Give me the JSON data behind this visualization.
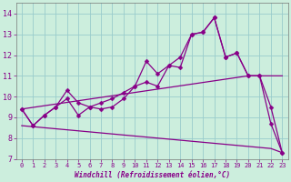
{
  "xlabel": "Windchill (Refroidissement éolien,°C)",
  "bg_color": "#cceedd",
  "line_color": "#880088",
  "grid_color": "#99cccc",
  "xlim": [
    -0.5,
    23.5
  ],
  "ylim": [
    7.0,
    14.5
  ],
  "xticks": [
    0,
    1,
    2,
    3,
    4,
    5,
    6,
    7,
    8,
    9,
    10,
    11,
    12,
    13,
    14,
    15,
    16,
    17,
    18,
    19,
    20,
    21,
    22,
    23
  ],
  "yticks": [
    7,
    8,
    9,
    10,
    11,
    12,
    13,
    14
  ],
  "x": [
    0,
    1,
    2,
    3,
    4,
    5,
    6,
    7,
    8,
    9,
    10,
    11,
    12,
    13,
    14,
    15,
    16,
    17,
    18,
    19,
    20,
    21,
    22,
    23
  ],
  "main_y": [
    9.4,
    8.6,
    9.1,
    9.5,
    9.9,
    9.1,
    9.5,
    9.4,
    9.5,
    9.9,
    10.5,
    10.7,
    10.5,
    11.5,
    11.4,
    13.0,
    13.1,
    13.8,
    11.9,
    12.1,
    11.0,
    11.0,
    8.7,
    7.3
  ],
  "upper_y": [
    9.4,
    8.6,
    9.1,
    9.5,
    10.3,
    9.7,
    9.5,
    9.7,
    9.9,
    10.2,
    10.5,
    11.7,
    11.1,
    11.5,
    11.9,
    13.0,
    13.1,
    13.8,
    11.9,
    12.1,
    11.0,
    11.0,
    9.5,
    7.3
  ],
  "trend_upper_y": [
    9.4,
    9.48,
    9.56,
    9.64,
    9.72,
    9.8,
    9.88,
    9.96,
    10.04,
    10.12,
    10.2,
    10.28,
    10.36,
    10.44,
    10.52,
    10.6,
    10.68,
    10.76,
    10.84,
    10.92,
    11.0,
    11.0,
    11.0,
    11.0
  ],
  "trend_lower_y": [
    8.6,
    8.55,
    8.5,
    8.45,
    8.4,
    8.35,
    8.3,
    8.25,
    8.2,
    8.15,
    8.1,
    8.05,
    8.0,
    7.95,
    7.9,
    7.85,
    7.8,
    7.75,
    7.7,
    7.65,
    7.6,
    7.55,
    7.5,
    7.3
  ],
  "markersize": 2.5,
  "linewidth": 0.9
}
